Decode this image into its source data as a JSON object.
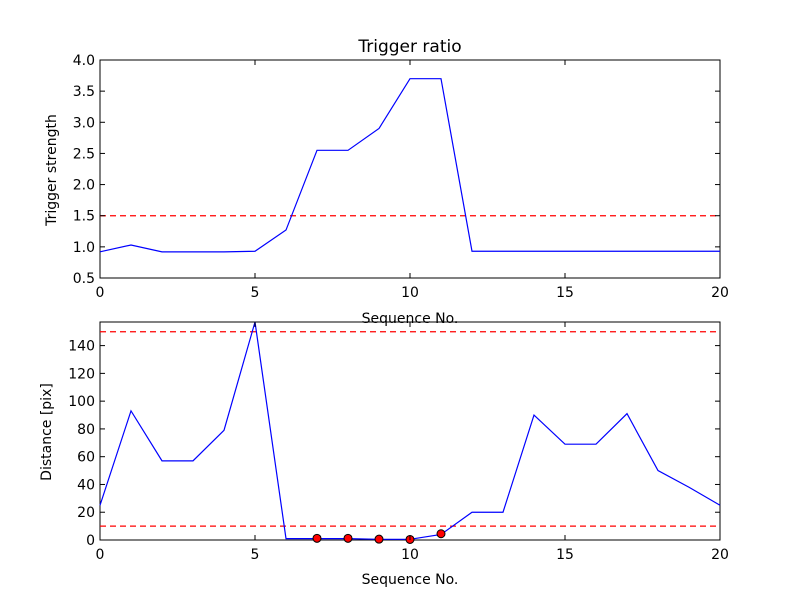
{
  "chart_data": [
    {
      "type": "line",
      "title": "Trigger ratio",
      "xlabel": "Sequence No.",
      "ylabel": "Trigger strength",
      "xlim": [
        0,
        20
      ],
      "ylim": [
        0.5,
        4.0
      ],
      "xticks": [
        0,
        5,
        10,
        15,
        20
      ],
      "yticks": [
        0.5,
        1.0,
        1.5,
        2.0,
        2.5,
        3.0,
        3.5,
        4.0
      ],
      "x": [
        0,
        1,
        2,
        3,
        4,
        5,
        6,
        7,
        8,
        9,
        10,
        11,
        12,
        13,
        14,
        15,
        16,
        17,
        18,
        19,
        20
      ],
      "series": [
        {
          "values": [
            0.92,
            1.03,
            0.92,
            0.92,
            0.92,
            0.93,
            1.27,
            2.55,
            2.55,
            2.9,
            3.7,
            3.7,
            0.93,
            0.93,
            0.93,
            0.93,
            0.93,
            0.93,
            0.93,
            0.93,
            0.93
          ],
          "color": "#0000ff"
        }
      ],
      "threshold_lines": [
        {
          "y": 1.5,
          "color": "#ff0000",
          "style": "dashed"
        }
      ],
      "markers": [],
      "grid": false
    },
    {
      "type": "line",
      "title": "",
      "xlabel": "Sequence No.",
      "ylabel": "Distance [pix]",
      "xlim": [
        0,
        20
      ],
      "ylim": [
        0,
        157
      ],
      "xticks": [
        0,
        5,
        10,
        15,
        20
      ],
      "yticks": [
        0,
        20,
        40,
        60,
        80,
        100,
        120,
        140
      ],
      "x": [
        0,
        1,
        2,
        3,
        4,
        5,
        6,
        7,
        8,
        9,
        10,
        11,
        12,
        13,
        14,
        15,
        16,
        17,
        18,
        19,
        20
      ],
      "series": [
        {
          "values": [
            25,
            93,
            57,
            57,
            79,
            157,
            1,
            1,
            1,
            0.5,
            0.5,
            4,
            20,
            20,
            90,
            69,
            69,
            91,
            50,
            38,
            25
          ],
          "color": "#0000ff"
        }
      ],
      "threshold_lines": [
        {
          "y": 150,
          "color": "#ff0000",
          "style": "dashed"
        },
        {
          "y": 10,
          "color": "#ff0000",
          "style": "dashed"
        }
      ],
      "markers": [
        {
          "x": 7,
          "y": 1.2
        },
        {
          "x": 8,
          "y": 1.2
        },
        {
          "x": 9,
          "y": 0.6
        },
        {
          "x": 10,
          "y": 0.4
        },
        {
          "x": 11,
          "y": 4.5
        }
      ],
      "marker_color": "#ff0000",
      "grid": false
    }
  ]
}
